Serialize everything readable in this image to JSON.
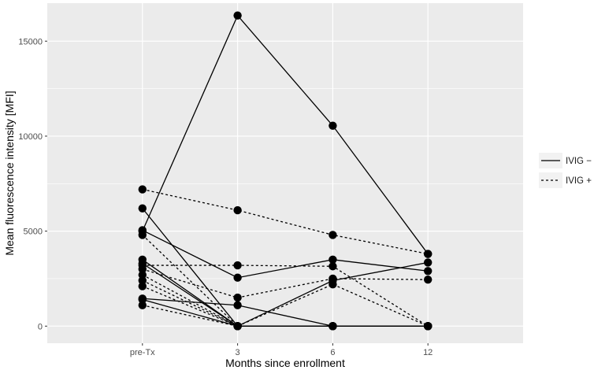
{
  "chart_data": {
    "type": "line",
    "xlabel": "Months since enrollment",
    "ylabel": "Mean fluorescence intensity [MFI]",
    "categories": [
      "pre-Tx",
      "3",
      "6",
      "12"
    ],
    "yticks": [
      "0",
      "5000",
      "10000",
      "15000"
    ],
    "ylim": [
      -900,
      17000
    ],
    "grid": true,
    "legend_position": "right",
    "legend": [
      {
        "label": "IVIG −",
        "style": "solid"
      },
      {
        "label": "IVIG +",
        "style": "dashed"
      }
    ],
    "series": [
      {
        "group": "IVIG −",
        "values": [
          5000,
          16350,
          10550,
          3800
        ]
      },
      {
        "group": "IVIG −",
        "values": [
          6200,
          0,
          0,
          0
        ]
      },
      {
        "group": "IVIG −",
        "values": [
          5050,
          2550,
          3500,
          2900
        ]
      },
      {
        "group": "IVIG −",
        "values": [
          3500,
          0,
          0,
          0
        ]
      },
      {
        "group": "IVIG −",
        "values": [
          3300,
          0,
          2400,
          3350
        ]
      },
      {
        "group": "IVIG −",
        "values": [
          1450,
          1100,
          0,
          0
        ]
      },
      {
        "group": "IVIG −",
        "values": [
          1400,
          0,
          0,
          0
        ]
      },
      {
        "group": "IVIG +",
        "values": [
          7200,
          6100,
          4800,
          3800
        ]
      },
      {
        "group": "IVIG +",
        "values": [
          4800,
          0,
          2200,
          0
        ]
      },
      {
        "group": "IVIG +",
        "values": [
          3200,
          3200,
          3150,
          0
        ]
      },
      {
        "group": "IVIG +",
        "values": [
          3000,
          1500,
          2500,
          2450
        ]
      },
      {
        "group": "IVIG +",
        "values": [
          2700,
          0,
          0,
          0
        ]
      },
      {
        "group": "IVIG +",
        "values": [
          2400,
          0,
          0,
          0
        ]
      },
      {
        "group": "IVIG +",
        "values": [
          2100,
          0,
          0,
          0
        ]
      },
      {
        "group": "IVIG +",
        "values": [
          1100,
          0,
          0,
          0
        ]
      }
    ]
  }
}
